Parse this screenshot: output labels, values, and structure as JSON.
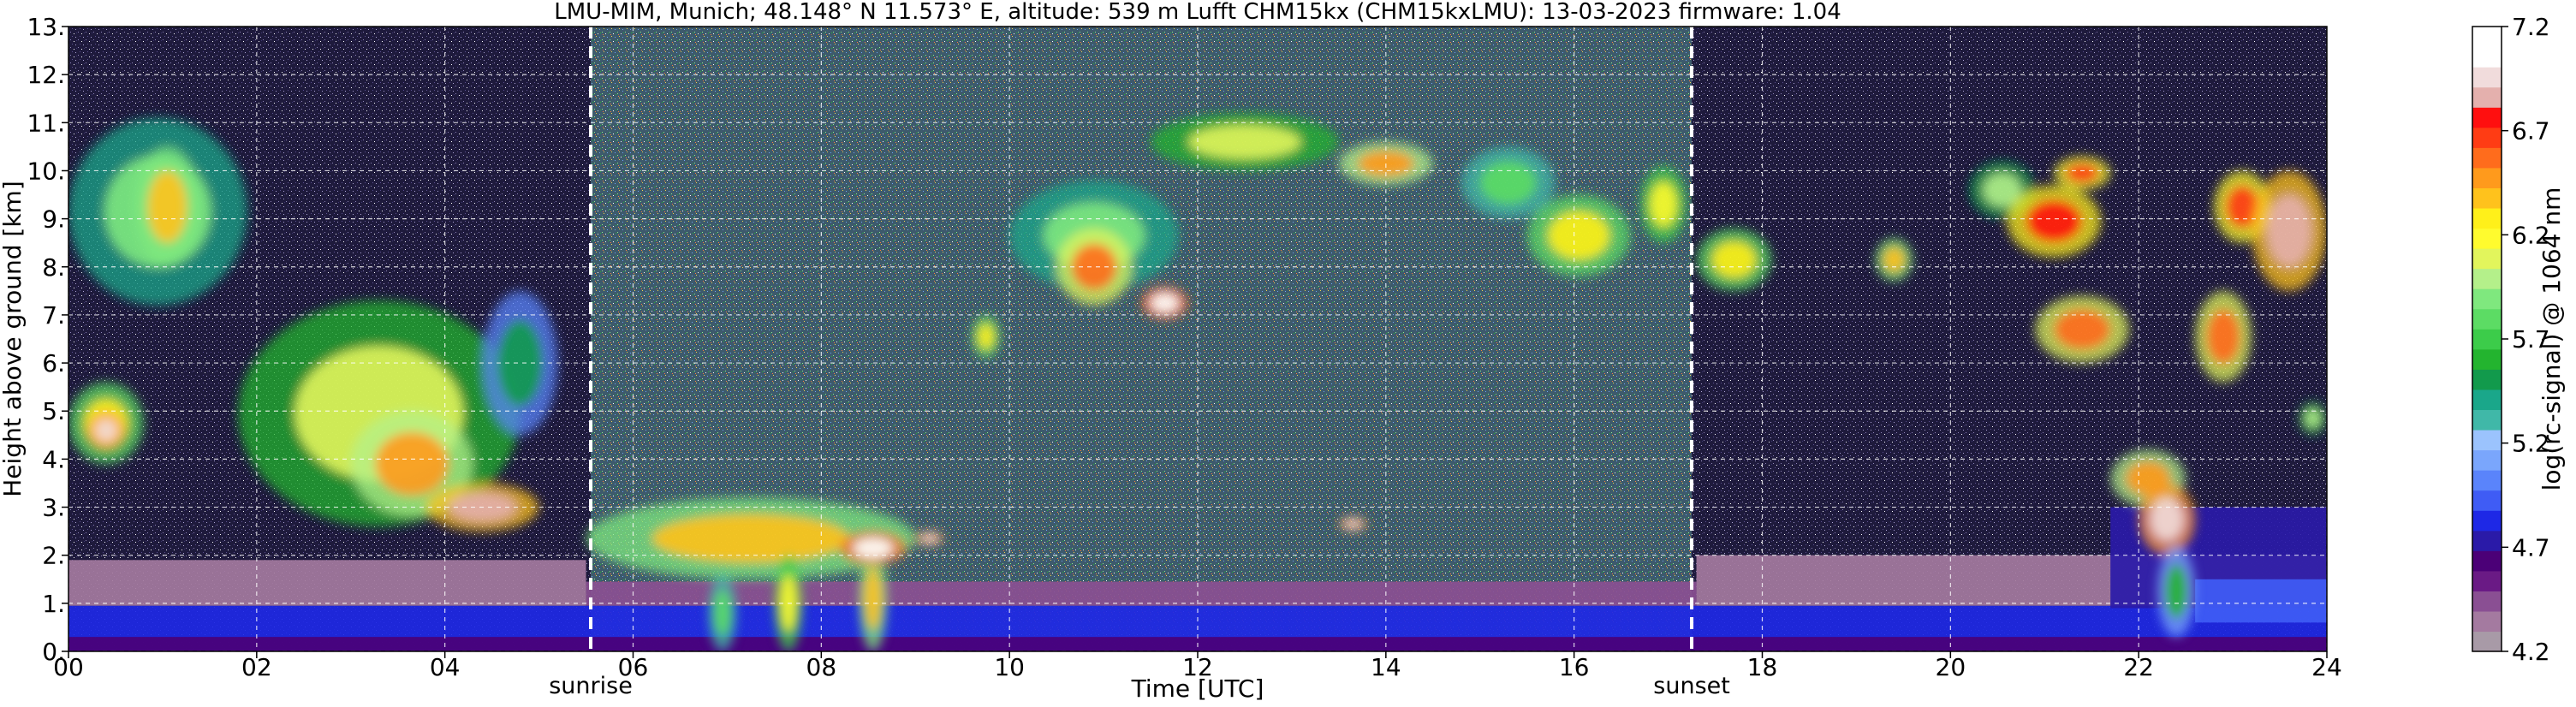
{
  "chart_data": {
    "type": "heatmap",
    "title": "LMU-MIM, Munich; 48.148° N 11.573° E, altitude: 539 m    Lufft CHM15kx (CHM15kxLMU): 13-03-2023    firmware: 1.04",
    "xlabel": "Time [UTC]",
    "ylabel": "Height above ground [km]",
    "xlim": [
      0,
      24
    ],
    "ylim": [
      0,
      13
    ],
    "x_ticks": [
      "00",
      "02",
      "04",
      "06",
      "08",
      "10",
      "12",
      "14",
      "16",
      "18",
      "20",
      "22",
      "24"
    ],
    "y_ticks": [
      "0.",
      "1.",
      "2.",
      "3.",
      "4.",
      "5.",
      "6.",
      "7.",
      "8.",
      "9.",
      "10.",
      "11.",
      "12.",
      "13."
    ],
    "grid": true,
    "markers": [
      {
        "label": "sunrise",
        "x": 5.55
      },
      {
        "label": "sunset",
        "x": 17.25
      }
    ],
    "colorbar": {
      "label": "log(rc-signal) @ 1064 nm",
      "range": [
        4.2,
        7.2
      ],
      "ticks": [
        "4.2",
        "4.7",
        "5.2",
        "5.7",
        "6.2",
        "6.7",
        "7.2"
      ],
      "colors": [
        "#a89aa7",
        "#a47aa0",
        "#8a4f93",
        "#6a1a85",
        "#4b0077",
        "#2a1aa8",
        "#1e28e6",
        "#3f5cf5",
        "#5a84fb",
        "#7aa6fc",
        "#9bc3fd",
        "#40b8a8",
        "#1aa78a",
        "#129a4c",
        "#23b42f",
        "#3ccc4a",
        "#5cdc64",
        "#7fe87e",
        "#b4f08a",
        "#e2f55c",
        "#fffb2e",
        "#fff01a",
        "#ffc21c",
        "#ff9a1c",
        "#ff6c1c",
        "#ff3c14",
        "#ff0f0f",
        "#e4b0ad",
        "#f1dcdc",
        "#ffffff",
        "#ffffff"
      ]
    },
    "layers": [
      {
        "t0": 0,
        "t1": 24,
        "h0": 0,
        "h1": 0.95,
        "v": 4.85
      },
      {
        "t0": 0,
        "t1": 24,
        "h0": 0,
        "h1": 0.3,
        "v": 4.6
      },
      {
        "t0": 0,
        "t1": 5.5,
        "h0": 0.95,
        "h1": 1.9,
        "v": 4.3
      },
      {
        "t0": 17.3,
        "t1": 24,
        "h0": 0.95,
        "h1": 2.0,
        "v": 4.35
      },
      {
        "t0": 5.5,
        "t1": 17.3,
        "h0": 0.95,
        "h1": 1.45,
        "v": 4.45
      },
      {
        "t0": 21.7,
        "t1": 24,
        "h0": 0.9,
        "h1": 3.0,
        "v": 4.75
      },
      {
        "t0": 22.6,
        "t1": 24,
        "h0": 0.6,
        "h1": 1.5,
        "v": 4.9
      }
    ],
    "features": [
      {
        "t": 0.0,
        "t1": 1.9,
        "h0": 7.2,
        "h1": 11.1,
        "v": 5.9
      },
      {
        "t": 0.7,
        "t1": 1.4,
        "h0": 8.0,
        "h1": 10.5,
        "v": 6.4
      },
      {
        "t": 0.0,
        "t1": 0.8,
        "h0": 3.9,
        "h1": 5.6,
        "v": 6.3
      },
      {
        "t": 0.2,
        "t1": 0.6,
        "h0": 4.2,
        "h1": 5.0,
        "v": 7.0
      },
      {
        "t": 1.8,
        "t1": 4.8,
        "h0": 2.6,
        "h1": 7.3,
        "v": 6.1
      },
      {
        "t": 3.0,
        "t1": 4.3,
        "h0": 2.8,
        "h1": 5.0,
        "v": 6.5
      },
      {
        "t": 3.8,
        "t1": 5.0,
        "h0": 2.5,
        "h1": 3.5,
        "v": 6.9
      },
      {
        "t": 4.4,
        "t1": 5.2,
        "h0": 4.5,
        "h1": 7.5,
        "v": 5.5
      },
      {
        "t": 5.5,
        "t1": 9.0,
        "h0": 1.5,
        "h1": 3.2,
        "v": 6.4
      },
      {
        "t": 6.8,
        "t1": 7.1,
        "h0": 0.0,
        "h1": 1.6,
        "v": 5.8
      },
      {
        "t": 7.5,
        "t1": 7.8,
        "h0": 0.0,
        "h1": 2.0,
        "v": 6.2
      },
      {
        "t": 8.4,
        "t1": 8.7,
        "h0": 0.0,
        "h1": 2.2,
        "v": 6.4
      },
      {
        "t": 8.2,
        "t1": 8.9,
        "h0": 1.8,
        "h1": 2.5,
        "v": 7.1
      },
      {
        "t": 9.0,
        "t1": 9.3,
        "h0": 2.2,
        "h1": 2.5,
        "v": 7.0
      },
      {
        "t": 9.6,
        "t1": 9.9,
        "h0": 6.1,
        "h1": 7.0,
        "v": 6.3
      },
      {
        "t": 10.0,
        "t1": 11.8,
        "h0": 7.5,
        "h1": 9.8,
        "v": 5.9
      },
      {
        "t": 10.5,
        "t1": 11.3,
        "h0": 7.2,
        "h1": 8.8,
        "v": 6.6
      },
      {
        "t": 11.4,
        "t1": 11.9,
        "h0": 6.9,
        "h1": 7.6,
        "v": 7.1
      },
      {
        "t": 11.5,
        "t1": 13.5,
        "h0": 10.0,
        "h1": 11.2,
        "v": 6.1
      },
      {
        "t": 13.5,
        "t1": 14.5,
        "h0": 9.7,
        "h1": 10.6,
        "v": 6.5
      },
      {
        "t": 13.5,
        "t1": 13.8,
        "h0": 2.5,
        "h1": 2.8,
        "v": 7.0
      },
      {
        "t": 14.8,
        "t1": 15.8,
        "h0": 9.0,
        "h1": 10.5,
        "v": 5.8
      },
      {
        "t": 15.5,
        "t1": 16.6,
        "h0": 7.8,
        "h1": 9.5,
        "v": 6.3
      },
      {
        "t": 16.7,
        "t1": 17.2,
        "h0": 8.5,
        "h1": 10.1,
        "v": 6.2
      },
      {
        "t": 17.3,
        "t1": 18.1,
        "h0": 7.5,
        "h1": 8.8,
        "v": 6.3
      },
      {
        "t": 19.2,
        "t1": 19.6,
        "h0": 7.7,
        "h1": 8.6,
        "v": 6.4
      },
      {
        "t": 20.2,
        "t1": 20.9,
        "h0": 9.0,
        "h1": 10.2,
        "v": 6.0
      },
      {
        "t": 20.6,
        "t1": 21.6,
        "h0": 8.2,
        "h1": 9.7,
        "v": 6.8
      },
      {
        "t": 20.9,
        "t1": 21.9,
        "h0": 6.0,
        "h1": 7.4,
        "v": 6.6
      },
      {
        "t": 21.1,
        "t1": 21.7,
        "h0": 9.6,
        "h1": 10.3,
        "v": 6.7
      },
      {
        "t": 21.7,
        "t1": 22.5,
        "h0": 3.0,
        "h1": 4.2,
        "v": 6.5
      },
      {
        "t": 22.0,
        "t1": 22.6,
        "h0": 2.0,
        "h1": 3.5,
        "v": 7.0
      },
      {
        "t": 22.2,
        "t1": 22.6,
        "h0": 0.3,
        "h1": 2.2,
        "v": 5.6
      },
      {
        "t": 22.6,
        "t1": 23.2,
        "h0": 5.6,
        "h1": 7.5,
        "v": 6.6
      },
      {
        "t": 22.8,
        "t1": 23.4,
        "h0": 8.5,
        "h1": 10.0,
        "v": 6.7
      },
      {
        "t": 23.2,
        "t1": 24.0,
        "h0": 7.5,
        "h1": 10.0,
        "v": 6.9
      },
      {
        "t": 23.7,
        "t1": 24.0,
        "h0": 4.5,
        "h1": 5.2,
        "v": 6.0
      }
    ],
    "background": {
      "night_value": 4.45,
      "day_value": 5.4
    }
  }
}
